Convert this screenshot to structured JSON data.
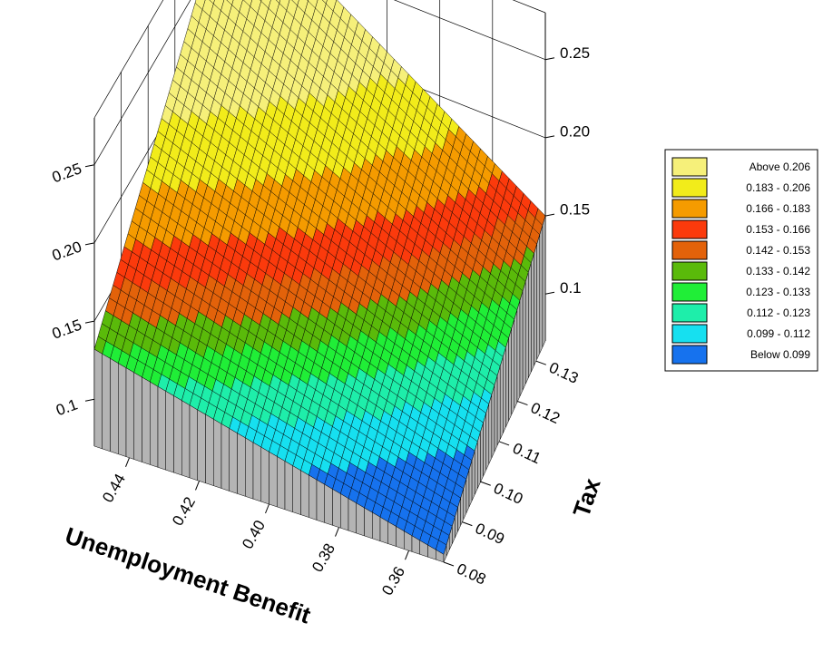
{
  "chart_data": {
    "type": "surface3d",
    "xlabel": "Unemployment Benefit",
    "ylabel": "Tax",
    "zlabel": "",
    "x_ticks": [
      "0.36",
      "0.38",
      "0.40",
      "0.42",
      "0.44"
    ],
    "y_ticks": [
      "0.08",
      "0.09",
      "0.10",
      "0.11",
      "0.12",
      "0.13"
    ],
    "z_ticks": [
      "0.1",
      "0.15",
      "0.20",
      "0.25"
    ],
    "xlim": [
      0.35,
      0.45
    ],
    "ylim": [
      0.08,
      0.135
    ],
    "zlim": [
      0.07,
      0.28
    ],
    "corner_values": [
      {
        "benefit": 0.45,
        "tax": 0.08,
        "value": 0.132
      },
      {
        "benefit": 0.35,
        "tax": 0.08,
        "value": 0.075
      },
      {
        "benefit": 0.35,
        "tax": 0.135,
        "value": 0.15
      },
      {
        "benefit": 0.45,
        "tax": 0.135,
        "value": 0.28
      }
    ],
    "legend": [
      {
        "label": "Above   0.206",
        "color": "#f6f07a"
      },
      {
        "label": "0.183 - 0.206",
        "color": "#f2ec1a"
      },
      {
        "label": "0.166 - 0.183",
        "color": "#f59b00"
      },
      {
        "label": "0.153 - 0.166",
        "color": "#fb3a0c"
      },
      {
        "label": "0.142 - 0.153",
        "color": "#e3620a"
      },
      {
        "label": "0.133 - 0.142",
        "color": "#5aba0a"
      },
      {
        "label": "0.123 - 0.133",
        "color": "#20ee37"
      },
      {
        "label": "0.112 - 0.123",
        "color": "#1eeeaa"
      },
      {
        "label": "0.099 - 0.112",
        "color": "#16e0f0"
      },
      {
        "label": "Below   0.099",
        "color": "#1672ee"
      }
    ]
  }
}
